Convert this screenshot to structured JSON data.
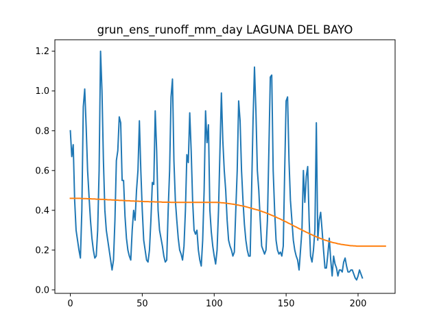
{
  "chart_data": {
    "type": "line",
    "title": "grun_ens_runoff_mm_day LAGUNA DEL BAYO",
    "xlabel": "",
    "ylabel": "",
    "xlim": [
      -10.75,
      225.75
    ],
    "ylim": [
      -0.0175,
      1.2575
    ],
    "xticks": [
      0,
      50,
      100,
      150,
      200
    ],
    "yticks": [
      0.0,
      0.2,
      0.4,
      0.6,
      0.8,
      1.0,
      1.2
    ],
    "xtick_labels": [
      "0",
      "50",
      "100",
      "150",
      "200"
    ],
    "ytick_labels": [
      "0.0",
      "0.2",
      "0.4",
      "0.6",
      "0.8",
      "1.0",
      "1.2"
    ],
    "grid": false,
    "series": [
      {
        "color": "#1f77b4",
        "values": [
          0.8,
          0.67,
          0.73,
          0.45,
          0.3,
          0.25,
          0.2,
          0.16,
          0.4,
          0.92,
          1.01,
          0.82,
          0.6,
          0.47,
          0.35,
          0.26,
          0.2,
          0.16,
          0.17,
          0.3,
          0.6,
          1.2,
          1.0,
          0.65,
          0.4,
          0.3,
          0.25,
          0.2,
          0.15,
          0.1,
          0.15,
          0.35,
          0.65,
          0.7,
          0.87,
          0.84,
          0.55,
          0.55,
          0.37,
          0.26,
          0.2,
          0.17,
          0.15,
          0.3,
          0.4,
          0.35,
          0.5,
          0.6,
          0.85,
          0.6,
          0.4,
          0.25,
          0.2,
          0.15,
          0.14,
          0.2,
          0.35,
          0.54,
          0.53,
          0.9,
          0.7,
          0.4,
          0.3,
          0.26,
          0.22,
          0.17,
          0.14,
          0.15,
          0.4,
          0.6,
          0.97,
          1.06,
          0.65,
          0.45,
          0.35,
          0.26,
          0.2,
          0.18,
          0.15,
          0.22,
          0.4,
          0.68,
          0.64,
          0.89,
          0.7,
          0.45,
          0.3,
          0.28,
          0.3,
          0.2,
          0.15,
          0.12,
          0.25,
          0.5,
          0.9,
          0.74,
          0.83,
          0.4,
          0.29,
          0.22,
          0.17,
          0.13,
          0.2,
          0.4,
          0.7,
          0.99,
          0.75,
          0.6,
          0.5,
          0.35,
          0.25,
          0.22,
          0.2,
          0.17,
          0.19,
          0.4,
          0.6,
          0.95,
          0.85,
          0.6,
          0.45,
          0.33,
          0.25,
          0.2,
          0.17,
          0.17,
          0.5,
          0.85,
          1.12,
          0.9,
          0.6,
          0.5,
          0.35,
          0.22,
          0.2,
          0.18,
          0.2,
          0.35,
          0.7,
          1.07,
          1.08,
          0.6,
          0.4,
          0.25,
          0.2,
          0.18,
          0.19,
          0.17,
          0.22,
          0.6,
          0.95,
          0.97,
          0.65,
          0.45,
          0.35,
          0.25,
          0.2,
          0.17,
          0.15,
          0.1,
          0.2,
          0.3,
          0.6,
          0.44,
          0.57,
          0.62,
          0.35,
          0.17,
          0.14,
          0.2,
          0.3,
          0.84,
          0.25,
          0.35,
          0.39,
          0.3,
          0.2,
          0.11,
          0.11,
          0.18,
          0.26,
          0.15,
          0.07,
          0.17,
          0.13,
          0.11,
          0.07,
          0.1,
          0.1,
          0.09,
          0.14,
          0.16,
          0.12,
          0.09,
          0.09,
          0.1,
          0.1,
          0.08,
          0.06,
          0.05,
          0.07,
          0.1,
          0.08,
          0.06
        ],
        "comment_x": "x values are indices 0..215"
      },
      {
        "color": "#ff7f0e",
        "values": [
          0.46,
          0.46,
          0.46,
          0.46,
          0.46,
          0.46,
          0.46,
          0.46,
          0.459,
          0.459,
          0.459,
          0.459,
          0.458,
          0.458,
          0.458,
          0.457,
          0.457,
          0.457,
          0.456,
          0.456,
          0.456,
          0.455,
          0.455,
          0.455,
          0.454,
          0.454,
          0.453,
          0.453,
          0.453,
          0.452,
          0.452,
          0.451,
          0.451,
          0.451,
          0.45,
          0.45,
          0.45,
          0.449,
          0.449,
          0.448,
          0.448,
          0.448,
          0.447,
          0.447,
          0.447,
          0.446,
          0.446,
          0.446,
          0.445,
          0.445,
          0.445,
          0.444,
          0.444,
          0.444,
          0.444,
          0.443,
          0.443,
          0.443,
          0.443,
          0.442,
          0.442,
          0.442,
          0.442,
          0.442,
          0.441,
          0.441,
          0.441,
          0.441,
          0.441,
          0.441,
          0.44,
          0.44,
          0.44,
          0.44,
          0.44,
          0.44,
          0.44,
          0.44,
          0.44,
          0.44,
          0.44,
          0.44,
          0.44,
          0.44,
          0.44,
          0.44,
          0.44,
          0.44,
          0.44,
          0.44,
          0.44,
          0.44,
          0.44,
          0.44,
          0.44,
          0.44,
          0.44,
          0.44,
          0.44,
          0.44,
          0.44,
          0.44,
          0.44,
          0.439,
          0.439,
          0.438,
          0.438,
          0.437,
          0.436,
          0.435,
          0.434,
          0.433,
          0.432,
          0.431,
          0.43,
          0.428,
          0.427,
          0.426,
          0.424,
          0.423,
          0.421,
          0.42,
          0.418,
          0.416,
          0.414,
          0.412,
          0.41,
          0.408,
          0.406,
          0.404,
          0.402,
          0.4,
          0.397,
          0.395,
          0.392,
          0.39,
          0.387,
          0.384,
          0.381,
          0.378,
          0.375,
          0.372,
          0.369,
          0.366,
          0.362,
          0.359,
          0.356,
          0.352,
          0.349,
          0.345,
          0.342,
          0.338,
          0.334,
          0.331,
          0.327,
          0.323,
          0.319,
          0.316,
          0.312,
          0.308,
          0.305,
          0.301,
          0.297,
          0.294,
          0.29,
          0.287,
          0.283,
          0.28,
          0.277,
          0.273,
          0.27,
          0.267,
          0.264,
          0.261,
          0.258,
          0.256,
          0.253,
          0.25,
          0.248,
          0.246,
          0.243,
          0.241,
          0.239,
          0.237,
          0.236,
          0.234,
          0.232,
          0.231,
          0.229,
          0.228,
          0.227,
          0.226,
          0.225,
          0.224,
          0.223,
          0.222,
          0.222,
          0.221,
          0.221,
          0.22,
          0.22,
          0.22,
          0.22,
          0.22,
          0.22,
          0.22,
          0.22,
          0.22,
          0.22,
          0.22,
          0.22,
          0.22,
          0.22,
          0.22,
          0.22,
          0.22,
          0.22,
          0.22,
          0.22,
          0.22
        ]
      }
    ]
  }
}
